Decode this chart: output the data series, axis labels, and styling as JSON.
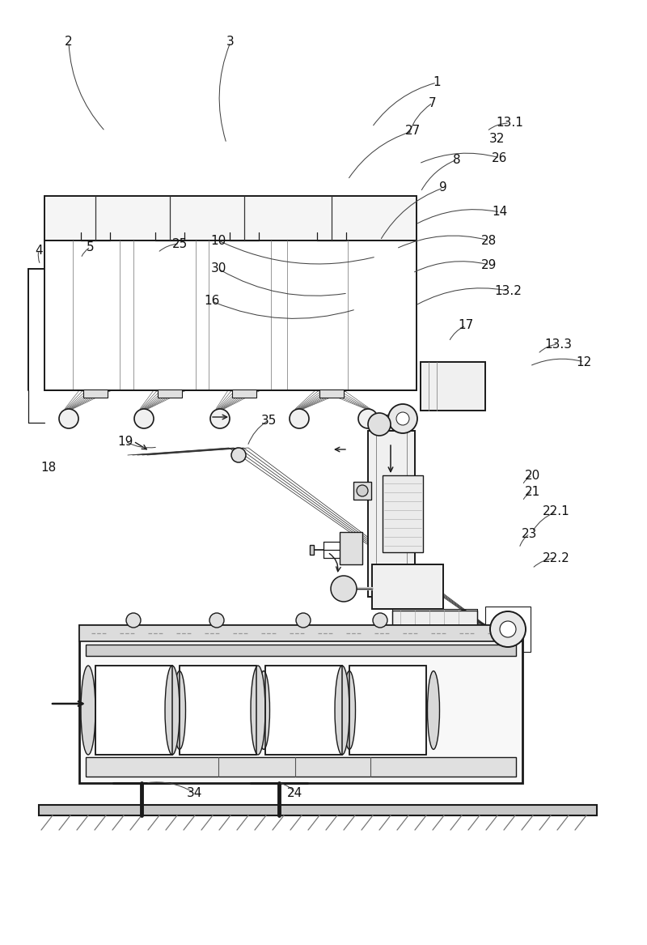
{
  "bg_color": "#ffffff",
  "lc": "#1a1a1a",
  "lw1": 1.4,
  "lw2": 0.9,
  "lw3": 0.5,
  "label_fs": 11,
  "fig_w": 8.0,
  "fig_h": 11.67
}
